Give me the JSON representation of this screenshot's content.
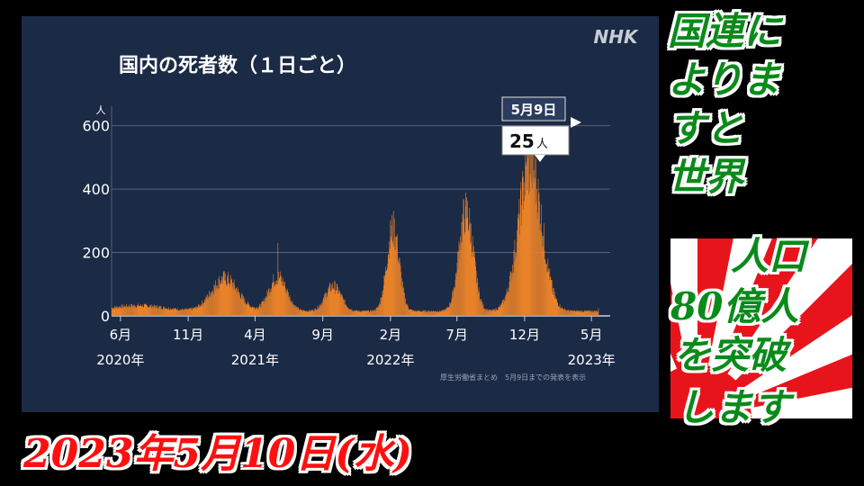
{
  "logo": "NHK",
  "source_note": "厚生労働省まとめ　5月9日までの発表を表示",
  "caption_lines": [
    "国連に",
    "よりま",
    "すと",
    "世界",
    "人口",
    "80億人",
    "を突破",
    "します"
  ],
  "date_caption": "2023年5月10日(水)",
  "colors": {
    "panel": "#1b2a45",
    "bars": "#e8822a",
    "caption_green": "#0a8a1a",
    "date_red": "#ff1010"
  },
  "chart_data": {
    "type": "bar",
    "title": "国内の死者数（１日ごと）",
    "ylabel": "人",
    "ylim": [
      0,
      650
    ],
    "yticks": [
      0,
      200,
      400,
      600
    ],
    "grid": true,
    "x_tick_labels": [
      {
        "month": "6月",
        "year": "2020年",
        "day": 20
      },
      {
        "month": "11月",
        "year": "",
        "day": 173
      },
      {
        "month": "4月",
        "year": "2021年",
        "day": 324
      },
      {
        "month": "9月",
        "year": "",
        "day": 477
      },
      {
        "month": "2月",
        "year": "2022年",
        "day": 630
      },
      {
        "month": "7月",
        "year": "",
        "day": 780
      },
      {
        "month": "12月",
        "year": "",
        "day": 933
      },
      {
        "month": "5月",
        "year": "2023年",
        "day": 1084
      }
    ],
    "x_range_days": [
      0,
      1110
    ],
    "waves": [
      {
        "center_day": 60,
        "peak": 18,
        "width": 60
      },
      {
        "center_day": 255,
        "peak": 105,
        "width": 30
      },
      {
        "center_day": 375,
        "peak": 110,
        "width": 20
      },
      {
        "center_day": 500,
        "peak": 80,
        "width": 18
      },
      {
        "center_day": 635,
        "peak": 265,
        "width": 14
      },
      {
        "center_day": 800,
        "peak": 320,
        "width": 16
      },
      {
        "center_day": 945,
        "peak": 470,
        "width": 26
      }
    ],
    "spikes": [
      {
        "day": 375,
        "value": 230
      },
      {
        "day": 955,
        "value": 505
      },
      {
        "day": 800,
        "value": 345
      }
    ],
    "baseline": 15,
    "highlight": {
      "date": "5月9日",
      "value": "25",
      "unit": "人",
      "day": 1099
    }
  }
}
